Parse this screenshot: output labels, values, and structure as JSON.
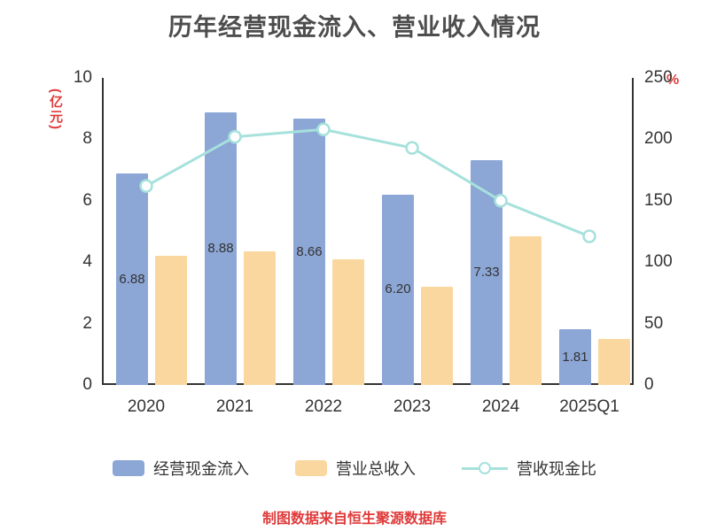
{
  "chart_data": {
    "type": "bar",
    "combo": "bar+line",
    "title": "历年经营现金流入、营业收入情况",
    "categories": [
      "2020",
      "2021",
      "2022",
      "2023",
      "2024",
      "2025Q1"
    ],
    "series": [
      {
        "name": "经营现金流入",
        "type": "bar",
        "axis": "left",
        "color": "#8ca6d6",
        "values": [
          6.88,
          8.88,
          8.66,
          6.2,
          7.33,
          1.81
        ],
        "labels": [
          "6.88",
          "8.88",
          "8.66",
          "6.20",
          "7.33",
          "1.81"
        ]
      },
      {
        "name": "营业总收入",
        "type": "bar",
        "axis": "left",
        "color": "#fbd7a0",
        "values": [
          4.2,
          4.35,
          4.1,
          3.2,
          4.83,
          1.5
        ]
      },
      {
        "name": "营收现金比",
        "type": "line",
        "axis": "right",
        "color": "#a6e1dc",
        "values": [
          162,
          202,
          208,
          193,
          150,
          121
        ]
      }
    ],
    "left_axis": {
      "label": "(亿元)",
      "min": 0,
      "max": 10,
      "ticks": [
        0,
        2,
        4,
        6,
        8,
        10
      ]
    },
    "right_axis": {
      "label": "%",
      "min": 0,
      "max": 250,
      "ticks": [
        0,
        50,
        100,
        150,
        200,
        250
      ]
    },
    "grid": false,
    "legend_position": "bottom"
  },
  "footer": {
    "source_note": "制图数据来自恒生聚源数据库"
  },
  "colors": {
    "bar_blue": "#8ca6d6",
    "bar_orange": "#fbd7a0",
    "line_cyan": "#a6e1dc",
    "accent_red": "#e03a3a",
    "axis_text": "#333333",
    "title_text": "#4d4d4d"
  }
}
